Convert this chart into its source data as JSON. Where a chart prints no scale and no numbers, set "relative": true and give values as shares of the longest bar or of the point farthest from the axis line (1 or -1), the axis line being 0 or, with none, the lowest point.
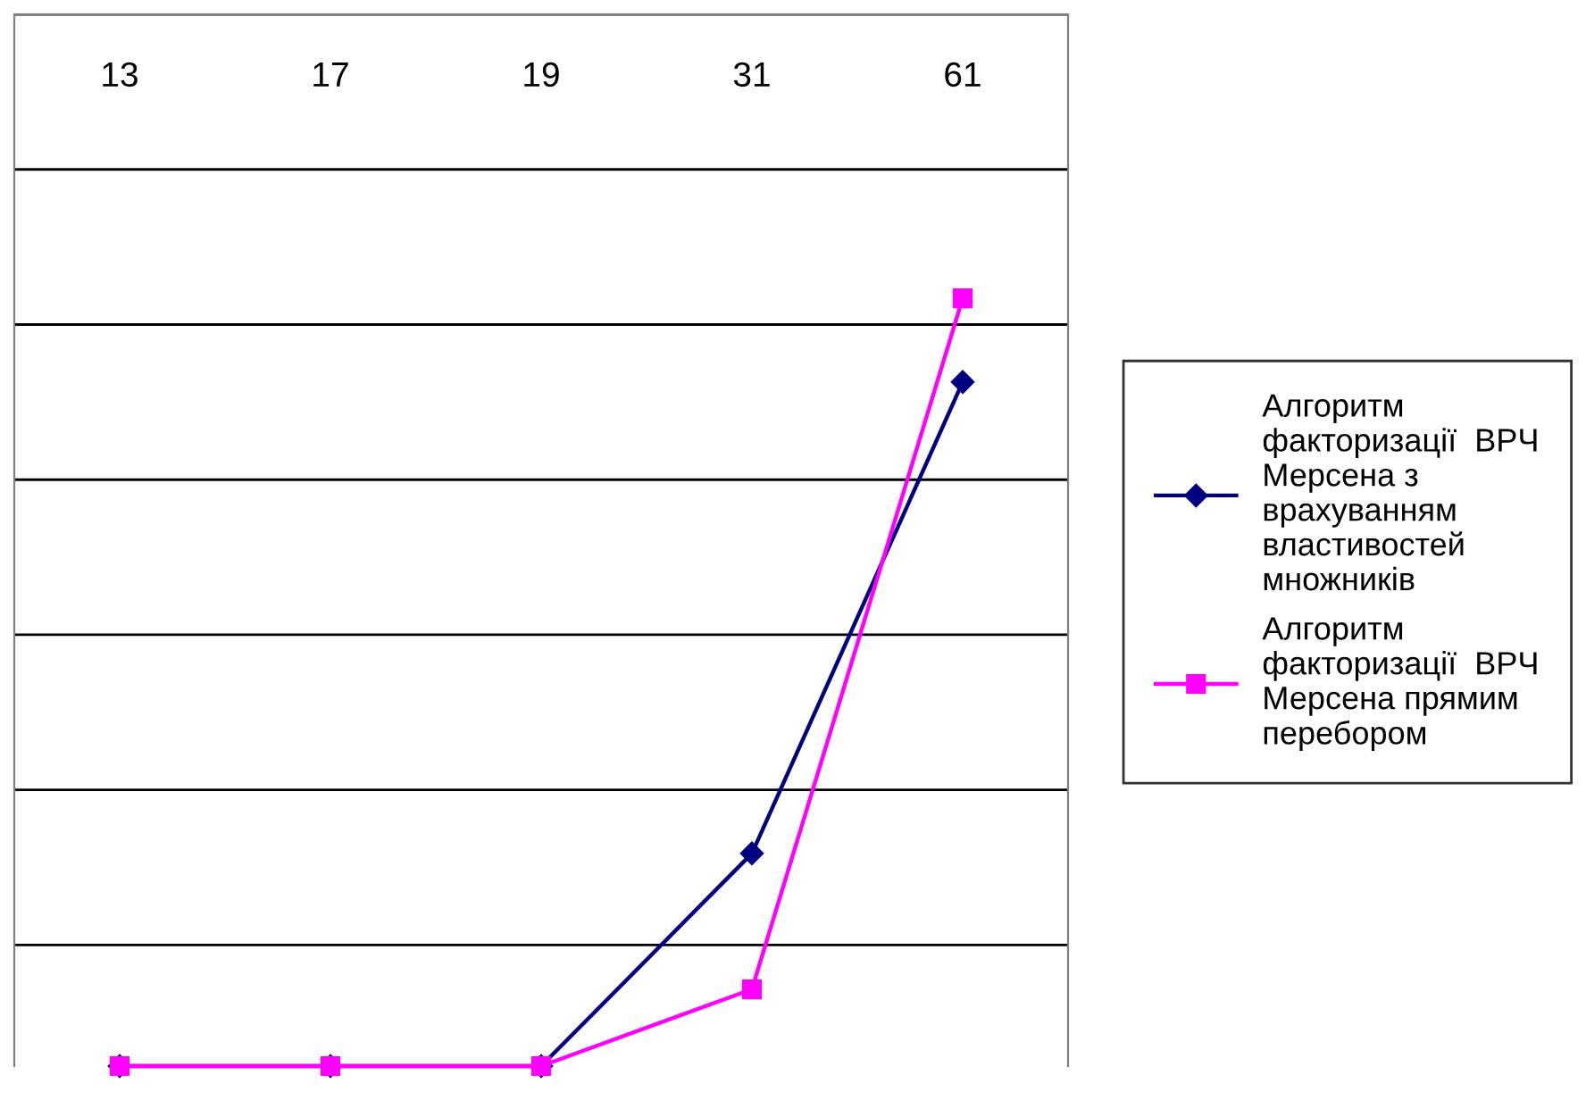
{
  "chart_data": {
    "type": "line",
    "relative": true,
    "categories": [
      "13",
      "17",
      "19",
      "31",
      "61"
    ],
    "series": [
      {
        "name": "Алгоритм факторизації  ВРЧ Мерсена з врахуванням властивостей множників",
        "color": "#000080",
        "marker": "diamond",
        "values": [
          0,
          0,
          0,
          0.277,
          0.891
        ]
      },
      {
        "name": "Алгоритм факторизації  ВРЧ Мерсена прямим перебором",
        "color": "#ff00ff",
        "marker": "square",
        "values": [
          0,
          0,
          0,
          0.1,
          1
        ]
      }
    ],
    "grid": "y",
    "legend": "right",
    "line_style": "solid",
    "tick_labels": "x"
  }
}
